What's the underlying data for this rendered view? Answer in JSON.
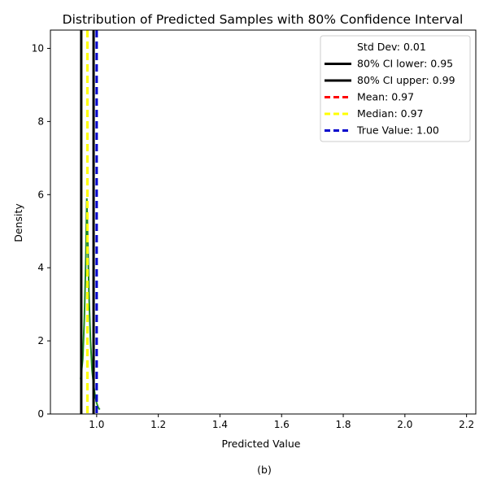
{
  "chart_data": {
    "type": "area",
    "title": "Distribution of Predicted Samples with 80% Confidence Interval",
    "xlabel": "Predicted Value",
    "ylabel": "Density",
    "caption": "(b)",
    "xlim": [
      0.85,
      2.23
    ],
    "ylim": [
      0,
      10.5
    ],
    "xticks": [
      1.0,
      1.2,
      1.4,
      1.6,
      1.8,
      2.0,
      2.2
    ],
    "xtick_labels": [
      "1.0",
      "1.2",
      "1.4",
      "1.6",
      "1.8",
      "2.0",
      "2.2"
    ],
    "yticks": [
      0,
      2,
      4,
      6,
      8,
      10
    ],
    "ytick_labels": [
      "0",
      "2",
      "4",
      "6",
      "8",
      "10"
    ],
    "grid": false,
    "legend_position": "top-right",
    "density": {
      "x": [
        0.948,
        0.955,
        0.96,
        0.965,
        0.968,
        0.972,
        0.975,
        0.98,
        0.985,
        0.99,
        0.995,
        1.0,
        1.005,
        1.01
      ],
      "y": [
        0.95,
        1.5,
        2.6,
        4.3,
        5.9,
        4.5,
        3.3,
        2.0,
        1.2,
        0.8,
        0.5,
        0.3,
        0.18,
        0.12
      ],
      "color": "#228b22"
    },
    "vlines": [
      {
        "label": "80% CI lower: 0.95",
        "x": 0.95,
        "color": "#000000",
        "style": "solid"
      },
      {
        "label": "80% CI upper: 0.99",
        "x": 0.99,
        "color": "#000000",
        "style": "solid"
      },
      {
        "label": "Mean: 0.97",
        "x": 0.97,
        "color": "#ff0000",
        "style": "dashed"
      },
      {
        "label": "Median: 0.97",
        "x": 0.97,
        "color": "#ffff00",
        "style": "dashed"
      },
      {
        "label": "True Value: 1.00",
        "x": 1.0,
        "color": "#0000cc",
        "style": "dashed"
      }
    ],
    "legend_extra": "Std Dev: 0.01"
  }
}
